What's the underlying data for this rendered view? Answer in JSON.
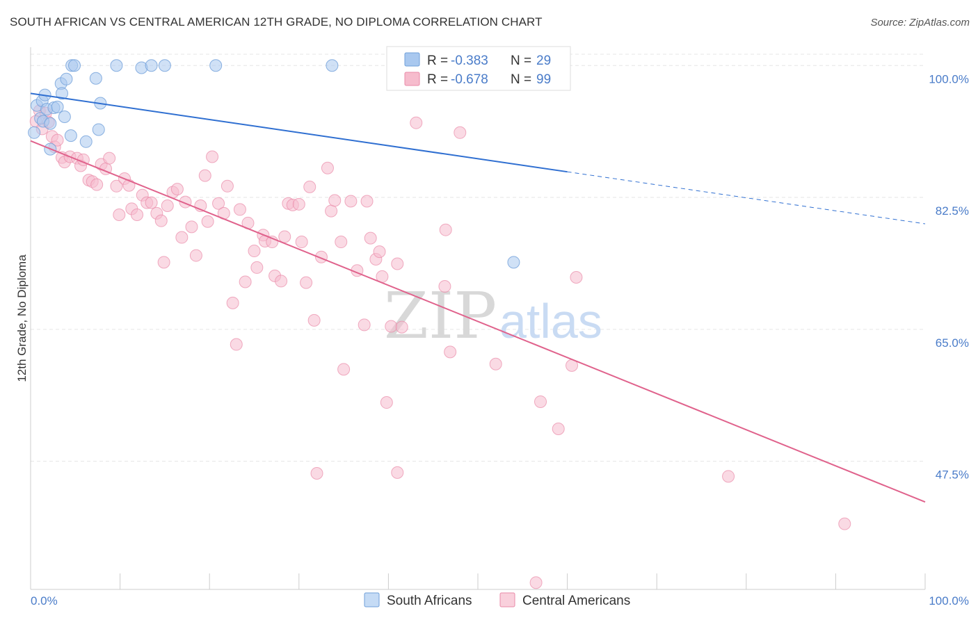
{
  "header": {
    "title": "SOUTH AFRICAN VS CENTRAL AMERICAN 12TH GRADE, NO DIPLOMA CORRELATION CHART",
    "source": "Source: ZipAtlas.com"
  },
  "watermark": {
    "zip": "ZIP",
    "atlas": "atlas"
  },
  "legend_box": {
    "r_label": "R =",
    "n_label": "N =",
    "rows": [
      {
        "r": "-0.383",
        "n": "29",
        "color": "#a9c8ef",
        "stroke": "#6f9fd9"
      },
      {
        "r": "-0.678",
        "n": "99",
        "color": "#f6bccd",
        "stroke": "#e98aa8"
      }
    ]
  },
  "bottom_legend": {
    "items": [
      {
        "label": "South Africans",
        "color": "#c5dbf5",
        "stroke": "#6f9fd9"
      },
      {
        "label": "Central Americans",
        "color": "#f9d0dc",
        "stroke": "#e98aa8"
      }
    ]
  },
  "chart_data": {
    "type": "scatter",
    "title": "SOUTH AFRICAN VS CENTRAL AMERICAN 12TH GRADE, NO DIPLOMA CORRELATION CHART",
    "xlabel": "",
    "ylabel": "12th Grade, No Diploma",
    "xlim": [
      0,
      100
    ],
    "ylim": [
      30.5,
      101.5
    ],
    "x_tick_labels": [
      "0.0%",
      "100.0%"
    ],
    "y_ticks": [
      100.0,
      82.5,
      65.0,
      47.5
    ],
    "y_tick_labels": [
      "100.0%",
      "82.5%",
      "65.0%",
      "47.5%"
    ],
    "grid": true,
    "series": [
      {
        "name": "South Africans",
        "color": "#6f9fd9",
        "fill": "#a9c8ef",
        "points": [
          [
            0.4,
            91.1
          ],
          [
            0.7,
            94.7
          ],
          [
            1.1,
            93.0
          ],
          [
            1.3,
            95.3
          ],
          [
            1.6,
            96.1
          ],
          [
            1.4,
            92.6
          ],
          [
            1.8,
            94.2
          ],
          [
            2.2,
            92.3
          ],
          [
            2.6,
            94.4
          ],
          [
            3.0,
            94.5
          ],
          [
            3.4,
            97.6
          ],
          [
            3.5,
            96.3
          ],
          [
            3.8,
            93.2
          ],
          [
            4.0,
            98.2
          ],
          [
            4.5,
            90.7
          ],
          [
            4.6,
            100.0
          ],
          [
            4.9,
            100.0
          ],
          [
            6.2,
            89.9
          ],
          [
            7.3,
            98.3
          ],
          [
            7.6,
            91.5
          ],
          [
            7.8,
            95.0
          ],
          [
            9.6,
            100.0
          ],
          [
            12.4,
            99.7
          ],
          [
            13.5,
            100.0
          ],
          [
            15.0,
            100.0
          ],
          [
            20.7,
            100.0
          ],
          [
            33.7,
            100.0
          ],
          [
            2.2,
            88.9
          ],
          [
            54.0,
            73.9
          ]
        ],
        "trend": {
          "x0": 0,
          "y0": 96.3,
          "x1": 60,
          "y1": 85.9,
          "dash_x1": 100,
          "dash_y1": 79.0
        }
      },
      {
        "name": "Central Americans",
        "color": "#e98aa8",
        "fill": "#f6bccd",
        "points": [
          [
            0.6,
            92.6
          ],
          [
            1.0,
            94.0
          ],
          [
            1.3,
            91.6
          ],
          [
            1.7,
            93.7
          ],
          [
            2.0,
            92.5
          ],
          [
            2.4,
            90.6
          ],
          [
            2.7,
            89.2
          ],
          [
            3.0,
            90.1
          ],
          [
            3.5,
            87.8
          ],
          [
            3.8,
            87.2
          ],
          [
            4.4,
            87.9
          ],
          [
            5.2,
            87.7
          ],
          [
            5.6,
            86.7
          ],
          [
            5.9,
            87.5
          ],
          [
            6.5,
            84.8
          ],
          [
            6.9,
            84.6
          ],
          [
            7.4,
            84.2
          ],
          [
            7.9,
            86.9
          ],
          [
            8.4,
            86.3
          ],
          [
            8.8,
            87.7
          ],
          [
            9.6,
            84.0
          ],
          [
            9.9,
            80.2
          ],
          [
            10.5,
            85.0
          ],
          [
            11.0,
            84.1
          ],
          [
            11.3,
            81.0
          ],
          [
            11.9,
            80.2
          ],
          [
            12.5,
            82.8
          ],
          [
            13.0,
            81.8
          ],
          [
            13.5,
            81.8
          ],
          [
            14.1,
            80.4
          ],
          [
            14.6,
            79.4
          ],
          [
            14.9,
            73.9
          ],
          [
            15.3,
            81.4
          ],
          [
            15.9,
            83.2
          ],
          [
            16.4,
            83.6
          ],
          [
            16.9,
            77.2
          ],
          [
            17.3,
            81.9
          ],
          [
            18.0,
            78.6
          ],
          [
            18.5,
            74.8
          ],
          [
            19.0,
            81.4
          ],
          [
            19.5,
            85.4
          ],
          [
            19.8,
            79.3
          ],
          [
            20.3,
            87.9
          ],
          [
            21.0,
            81.7
          ],
          [
            21.6,
            80.4
          ],
          [
            22.0,
            84.0
          ],
          [
            22.6,
            68.5
          ],
          [
            23.0,
            63.0
          ],
          [
            23.4,
            80.9
          ],
          [
            24.0,
            71.3
          ],
          [
            24.3,
            79.1
          ],
          [
            25.0,
            75.4
          ],
          [
            25.3,
            73.2
          ],
          [
            26.0,
            77.5
          ],
          [
            26.2,
            76.7
          ],
          [
            27.0,
            76.6
          ],
          [
            27.3,
            72.1
          ],
          [
            28.0,
            71.4
          ],
          [
            28.4,
            77.3
          ],
          [
            28.8,
            81.7
          ],
          [
            29.3,
            81.5
          ],
          [
            30.0,
            81.6
          ],
          [
            30.3,
            76.6
          ],
          [
            30.8,
            71.2
          ],
          [
            31.2,
            83.9
          ],
          [
            31.7,
            66.2
          ],
          [
            32.5,
            74.6
          ],
          [
            33.2,
            86.4
          ],
          [
            33.6,
            80.7
          ],
          [
            34.0,
            82.1
          ],
          [
            34.7,
            76.6
          ],
          [
            35.0,
            59.7
          ],
          [
            35.8,
            82.0
          ],
          [
            36.5,
            72.8
          ],
          [
            37.3,
            65.6
          ],
          [
            37.6,
            82.0
          ],
          [
            38.0,
            77.1
          ],
          [
            38.6,
            74.3
          ],
          [
            39.0,
            75.3
          ],
          [
            39.3,
            72.0
          ],
          [
            39.8,
            55.3
          ],
          [
            40.3,
            65.4
          ],
          [
            41.0,
            46.0
          ],
          [
            41.0,
            73.7
          ],
          [
            41.5,
            65.3
          ],
          [
            43.1,
            92.4
          ],
          [
            46.3,
            70.7
          ],
          [
            46.9,
            62.0
          ],
          [
            46.4,
            78.2
          ],
          [
            48.0,
            91.1
          ],
          [
            52.0,
            60.4
          ],
          [
            57.0,
            55.4
          ],
          [
            59.0,
            51.8
          ],
          [
            60.5,
            60.2
          ],
          [
            61.0,
            71.9
          ],
          [
            78.0,
            45.5
          ],
          [
            91.0,
            39.2
          ],
          [
            56.5,
            31.4
          ],
          [
            32.0,
            45.9
          ]
        ],
        "trend": {
          "x0": 0,
          "y0": 90.0,
          "x1": 100,
          "y1": 42.1
        }
      }
    ]
  }
}
